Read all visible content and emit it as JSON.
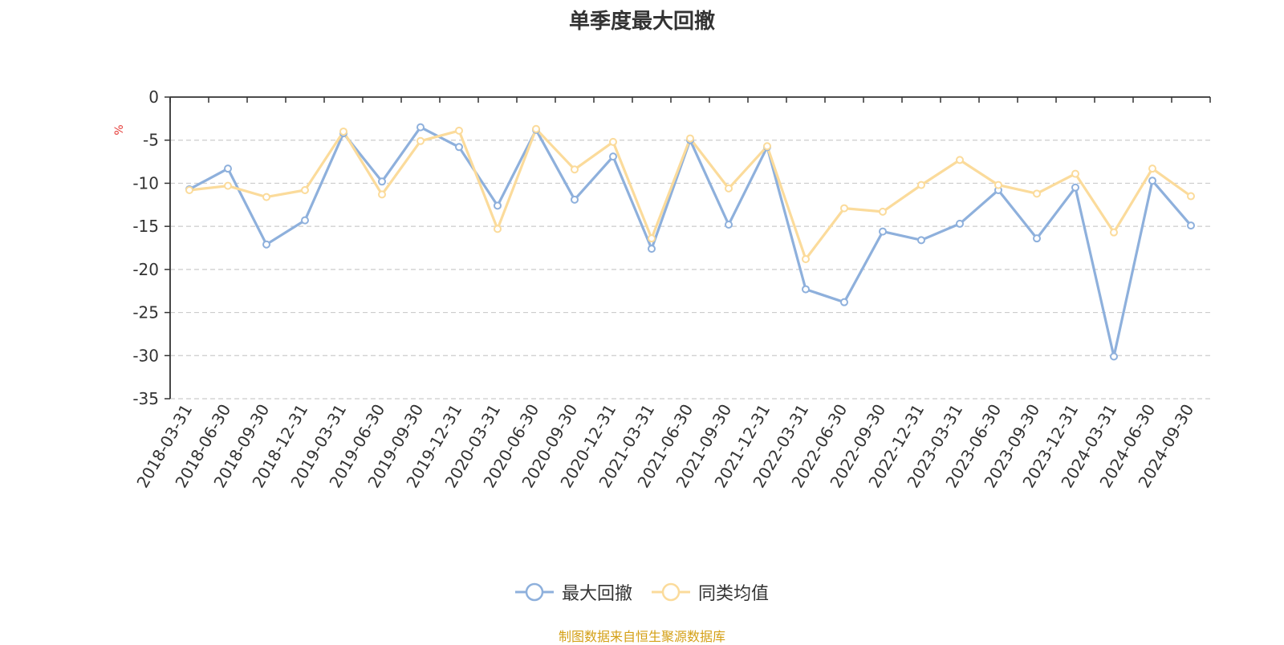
{
  "chart_data": {
    "type": "line",
    "title": "单季度最大回撤",
    "ylabel": "%",
    "ylim": [
      -35,
      0
    ],
    "yticks": [
      0,
      -5,
      -10,
      -15,
      -20,
      -25,
      -30,
      -35
    ],
    "grid": true,
    "legend_position": "bottom",
    "categories": [
      "2018-03-31",
      "2018-06-30",
      "2018-09-30",
      "2018-12-31",
      "2019-03-31",
      "2019-06-30",
      "2019-09-30",
      "2019-12-31",
      "2020-03-31",
      "2020-06-30",
      "2020-09-30",
      "2020-12-31",
      "2021-03-31",
      "2021-06-30",
      "2021-09-30",
      "2021-12-31",
      "2022-03-31",
      "2022-06-30",
      "2022-09-30",
      "2022-12-31",
      "2023-03-31",
      "2023-06-30",
      "2023-09-30",
      "2023-12-31",
      "2024-03-31",
      "2024-06-30",
      "2024-09-30"
    ],
    "series": [
      {
        "name": "最大回撤",
        "color": "#8eb0dc",
        "values": [
          -10.7,
          -8.3,
          -17.1,
          -14.3,
          -4.2,
          -9.8,
          -3.5,
          -5.8,
          -12.6,
          -3.8,
          -11.9,
          -6.9,
          -17.6,
          -5.0,
          -14.8,
          -5.8,
          -22.3,
          -23.8,
          -15.6,
          -16.6,
          -14.7,
          -10.8,
          -16.4,
          -10.5,
          -30.1,
          -9.7,
          -14.9
        ]
      },
      {
        "name": "同类均值",
        "color": "#fbdb9b",
        "values": [
          -10.8,
          -10.3,
          -11.6,
          -10.8,
          -4.0,
          -11.3,
          -5.1,
          -3.9,
          -15.3,
          -3.7,
          -8.4,
          -5.2,
          -16.4,
          -4.8,
          -10.6,
          -5.7,
          -18.8,
          -12.9,
          -13.3,
          -10.2,
          -7.3,
          -10.2,
          -11.2,
          -8.9,
          -15.7,
          -8.3,
          -11.5
        ]
      }
    ]
  },
  "footer": {
    "source_note": "制图数据来自恒生聚源数据库",
    "source_color": "#d4a017"
  }
}
